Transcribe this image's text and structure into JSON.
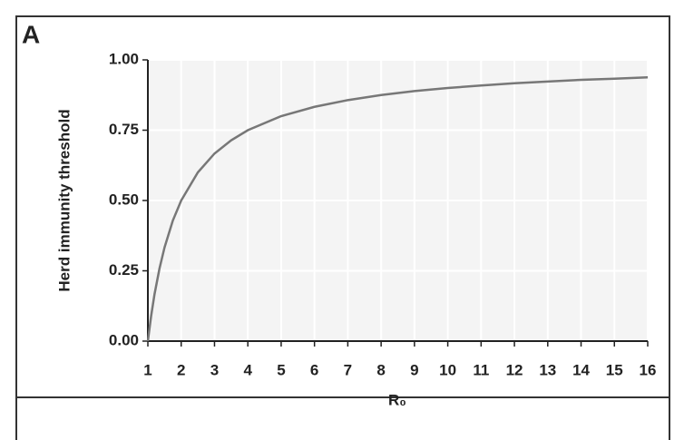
{
  "chart_data": {
    "type": "line",
    "panel_label": "A",
    "x_label": "R₀",
    "y_label": "Herd immunity threshold",
    "x": [
      1,
      1.1,
      1.2,
      1.35,
      1.5,
      1.75,
      2,
      2.5,
      3,
      3.5,
      4,
      5,
      6,
      7,
      8,
      9,
      10,
      11,
      12,
      13,
      14,
      15,
      16
    ],
    "series": [
      {
        "color": "#777777",
        "values": [
          0,
          0.091,
          0.167,
          0.259,
          0.333,
          0.429,
          0.5,
          0.6,
          0.667,
          0.714,
          0.75,
          0.8,
          0.833,
          0.857,
          0.875,
          0.889,
          0.9,
          0.909,
          0.917,
          0.923,
          0.929,
          0.933,
          0.938
        ]
      }
    ],
    "xlim": [
      1,
      16
    ],
    "xticks": [
      1,
      2,
      3,
      4,
      5,
      6,
      7,
      8,
      9,
      10,
      11,
      12,
      13,
      14,
      15,
      16
    ],
    "ylim": [
      0,
      1
    ],
    "yticks": [
      {
        "value": 0,
        "label": "0.00"
      },
      {
        "value": 0.25,
        "label": "0.25"
      },
      {
        "value": 0.5,
        "label": "0.50"
      },
      {
        "value": 0.75,
        "label": "0.75"
      },
      {
        "value": 1,
        "label": "1.00"
      }
    ],
    "grid": true
  }
}
